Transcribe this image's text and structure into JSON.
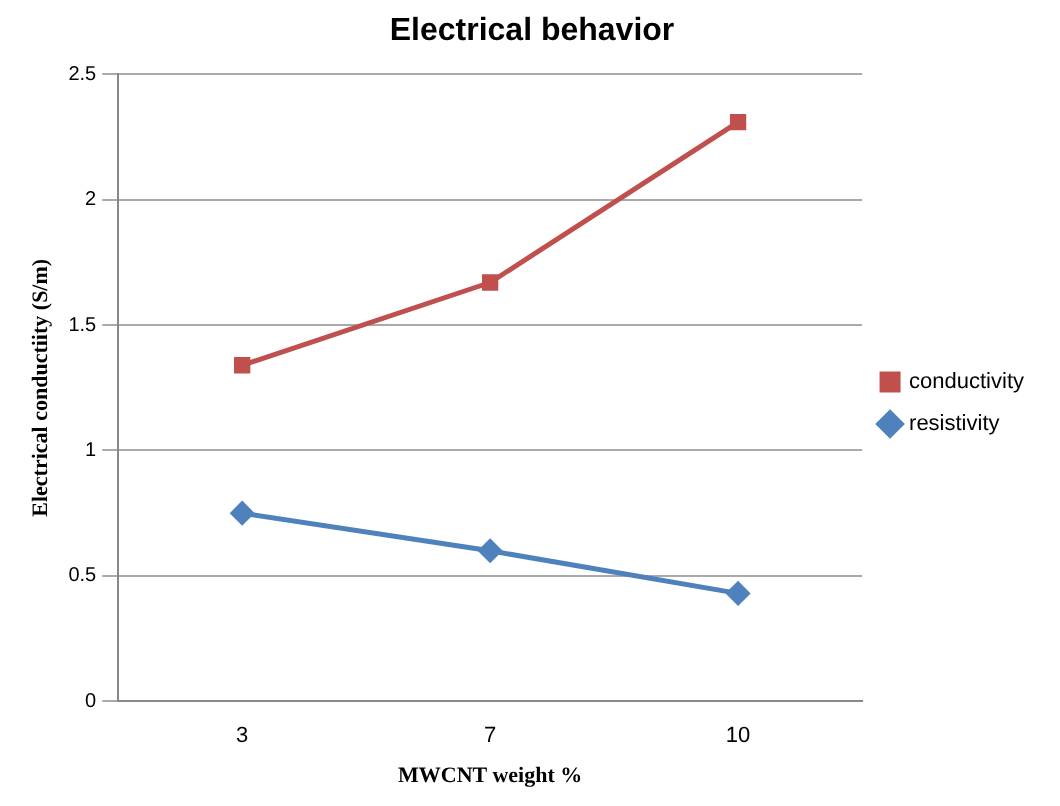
{
  "chart_data": {
    "type": "line",
    "title": "Electrical behavior",
    "xlabel": "MWCNT weight %",
    "ylabel": "Electrical conductiity (S/m)",
    "categories": [
      "3",
      "7",
      "10"
    ],
    "series": [
      {
        "name": "conductivity",
        "color": "#c0504d",
        "marker": "square",
        "values": [
          1.34,
          1.67,
          2.31
        ]
      },
      {
        "name": "resistivity",
        "color": "#4f81bd",
        "marker": "diamond",
        "values": [
          0.75,
          0.6,
          0.43
        ]
      }
    ],
    "ylim": [
      0,
      2.5
    ],
    "yticks": [
      0,
      0.5,
      1,
      1.5,
      2,
      2.5
    ],
    "grid": "y",
    "legend": "right"
  }
}
